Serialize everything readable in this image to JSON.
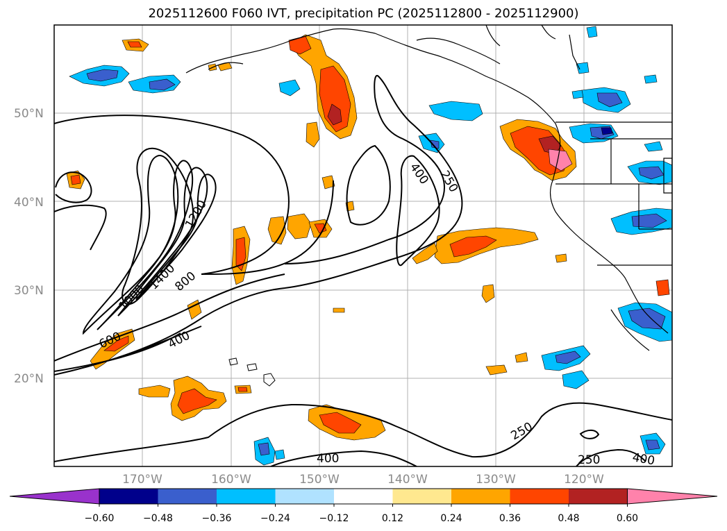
{
  "title": "2025112600 F060 IVT, precipitation PC (2025112800 - 2025112900)",
  "map": {
    "lat_labels": [
      "50°N",
      "40°N",
      "30°N",
      "20°N"
    ],
    "lon_labels": [
      "170°W",
      "160°W",
      "150°W",
      "140°W",
      "130°W",
      "120°W"
    ],
    "contour_labels": [
      "1200",
      "1400",
      "1000",
      "800",
      "600",
      "400",
      "400",
      "250",
      "250",
      "400",
      "250",
      "400"
    ]
  },
  "colorbar": {
    "labels": [
      "−0.60",
      "−0.48",
      "−0.36",
      "−0.24",
      "−0.12",
      "0.12",
      "0.24",
      "0.36",
      "0.48",
      "0.60"
    ],
    "colors": [
      "#9932cc",
      "#00008b",
      "#3a5fcd",
      "#00bfff",
      "#b0e2ff",
      "#ffffff",
      "#ffe88f",
      "#ffa500",
      "#ff4500",
      "#b22222",
      "#ff82ab"
    ]
  }
}
